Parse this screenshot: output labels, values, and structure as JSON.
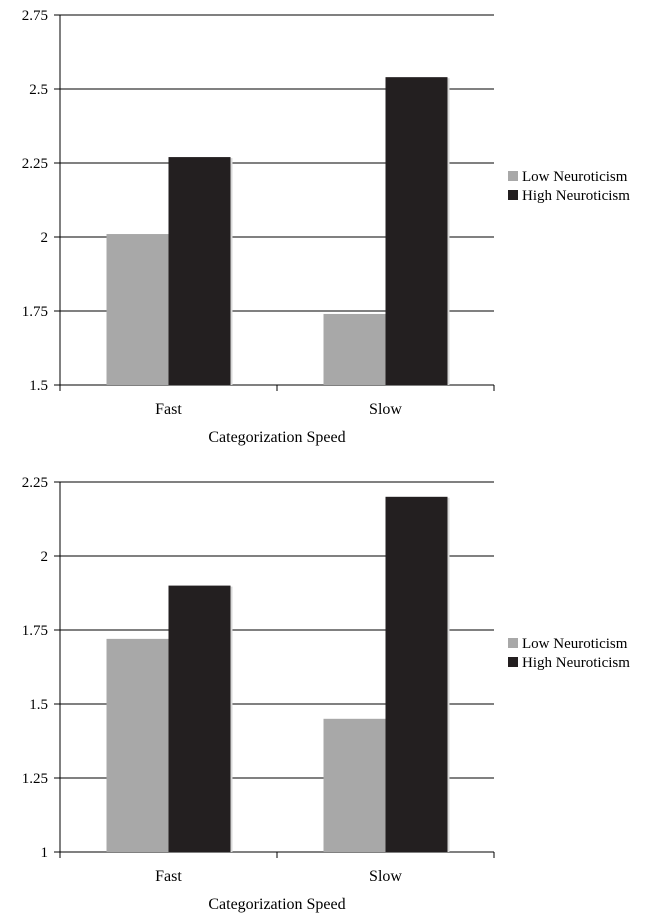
{
  "chart_data": [
    {
      "type": "bar",
      "categories": [
        "Fast",
        "Slow"
      ],
      "series": [
        {
          "name": "Low Neuroticism",
          "values": [
            2.01,
            1.74
          ],
          "color": "#a8a8a8"
        },
        {
          "name": "High Neuroticism",
          "values": [
            2.27,
            2.54
          ],
          "color": "#231f20"
        }
      ],
      "title": "",
      "xlabel": "Categorization Speed",
      "ylabel": "",
      "ylim": [
        1.5,
        2.75
      ],
      "yticks": [
        "1.5",
        "1.75",
        "2",
        "2.25",
        "2.5",
        "2.75"
      ],
      "grid": true,
      "legend": "right"
    },
    {
      "type": "bar",
      "categories": [
        "Fast",
        "Slow"
      ],
      "series": [
        {
          "name": "Low Neuroticism",
          "values": [
            1.72,
            1.45
          ],
          "color": "#a8a8a8"
        },
        {
          "name": "High Neuroticism",
          "values": [
            1.9,
            2.2
          ],
          "color": "#231f20"
        }
      ],
      "title": "",
      "xlabel": "Categorization Speed",
      "ylabel": "",
      "ylim": [
        1,
        2.25
      ],
      "yticks": [
        "1",
        "1.25",
        "1.5",
        "1.75",
        "2",
        "2.25"
      ],
      "grid": true,
      "legend": "right"
    }
  ]
}
